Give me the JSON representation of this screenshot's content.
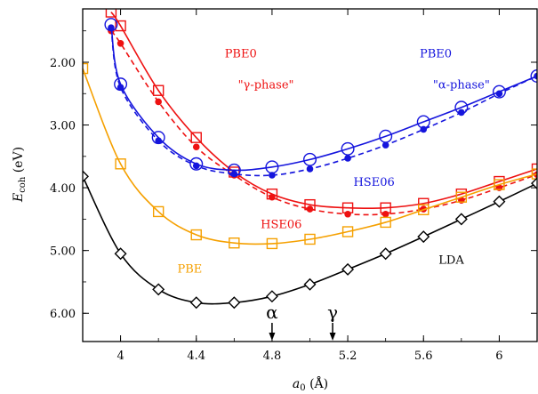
{
  "chart_data": {
    "type": "line",
    "xlabel_main": "a",
    "xlabel_sub": "0",
    "xlabel_unit": " (Å)",
    "ylabel_main": "E",
    "ylabel_sub": "coh",
    "ylabel_unit": " (eV)",
    "xlim": [
      3.8,
      6.2
    ],
    "ylim": [
      6.45,
      1.15
    ],
    "xticks": [
      4.0,
      4.4,
      4.8,
      5.2,
      5.6,
      6.0
    ],
    "xtick_labels": [
      "4",
      "4.4",
      "4.8",
      "5.2",
      "5.6",
      "6"
    ],
    "yticks": [
      2.0,
      3.0,
      4.0,
      5.0,
      6.0
    ],
    "ytick_labels": [
      "2.00",
      "3.00",
      "4.00",
      "5.00",
      "6.00"
    ],
    "grid": false,
    "series": [
      {
        "key": "pbe0_gamma",
        "color": "#ee1111",
        "marker": "open-square",
        "line": "solid",
        "x": [
          3.95,
          4.0,
          4.2,
          4.4,
          4.6,
          4.8,
          5.0,
          5.2,
          5.4,
          5.6,
          5.8,
          6.0,
          6.2
        ],
        "y": [
          1.2,
          1.42,
          2.45,
          3.2,
          3.75,
          4.1,
          4.27,
          4.32,
          4.32,
          4.25,
          4.1,
          3.9,
          3.7
        ]
      },
      {
        "key": "hse06_gamma",
        "color": "#ee1111",
        "marker": "filled-circle",
        "line": "dashed",
        "x": [
          3.95,
          4.0,
          4.2,
          4.4,
          4.6,
          4.8,
          5.0,
          5.2,
          5.4,
          5.6,
          5.8,
          6.0,
          6.2
        ],
        "y": [
          1.5,
          1.7,
          2.63,
          3.35,
          3.8,
          4.15,
          4.34,
          4.42,
          4.42,
          4.34,
          4.2,
          4.0,
          3.79
        ]
      },
      {
        "key": "pbe0_alpha",
        "color": "#1515dd",
        "marker": "open-circle",
        "line": "solid",
        "x": [
          3.95,
          4.0,
          4.2,
          4.4,
          4.6,
          4.8,
          5.0,
          5.2,
          5.4,
          5.6,
          5.8,
          6.0,
          6.2
        ],
        "y": [
          1.4,
          2.35,
          3.2,
          3.62,
          3.72,
          3.67,
          3.55,
          3.38,
          3.18,
          2.95,
          2.72,
          2.47,
          2.22
        ]
      },
      {
        "key": "hse06_alpha",
        "color": "#1515dd",
        "marker": "filled-circle",
        "line": "dashed",
        "x": [
          3.95,
          4.0,
          4.2,
          4.4,
          4.6,
          4.8,
          5.0,
          5.2,
          5.4,
          5.6,
          5.8,
          6.0,
          6.2
        ],
        "y": [
          1.45,
          2.4,
          3.25,
          3.65,
          3.78,
          3.8,
          3.7,
          3.53,
          3.32,
          3.07,
          2.8,
          2.5,
          2.22
        ]
      },
      {
        "key": "pbe",
        "color": "#f5a000",
        "marker": "open-square",
        "line": "solid",
        "x": [
          3.8,
          4.0,
          4.2,
          4.4,
          4.6,
          4.8,
          5.0,
          5.2,
          5.4,
          5.6,
          5.8,
          6.0,
          6.2
        ],
        "y": [
          2.1,
          3.62,
          4.38,
          4.75,
          4.88,
          4.89,
          4.82,
          4.7,
          4.55,
          4.35,
          4.15,
          3.95,
          3.78
        ]
      },
      {
        "key": "lda",
        "color": "#000000",
        "marker": "open-diamond",
        "line": "solid",
        "x": [
          3.8,
          4.0,
          4.2,
          4.4,
          4.6,
          4.8,
          5.0,
          5.2,
          5.4,
          5.6,
          5.8,
          6.0,
          6.2
        ],
        "y": [
          3.82,
          5.05,
          5.62,
          5.83,
          5.83,
          5.73,
          5.54,
          5.3,
          5.05,
          4.78,
          4.5,
          4.22,
          3.93
        ]
      }
    ],
    "annotations": [
      {
        "key": "pbe0_gamma",
        "text": "PBE0",
        "color": "#ee1111",
        "x": 4.55,
        "y": 1.92
      },
      {
        "key": "gamma_phase",
        "text": "\"γ-phase\"",
        "color": "#ee1111",
        "x": 4.62,
        "y": 2.42
      },
      {
        "key": "pbe0_alpha",
        "text": "PBE0",
        "color": "#1515dd",
        "x": 5.58,
        "y": 1.92
      },
      {
        "key": "alpha_phase",
        "text": "\"α-phase\"",
        "color": "#1515dd",
        "x": 5.65,
        "y": 2.42
      },
      {
        "key": "hse06_alpha",
        "text": "HSE06",
        "color": "#1515dd",
        "x": 5.23,
        "y": 3.97
      },
      {
        "key": "hse06_gamma",
        "text": "HSE06",
        "color": "#ee1111",
        "x": 4.74,
        "y": 4.64
      },
      {
        "key": "pbe",
        "text": "PBE",
        "color": "#f5a000",
        "x": 4.3,
        "y": 5.35
      },
      {
        "key": "lda",
        "text": "LDA",
        "color": "#000000",
        "x": 5.68,
        "y": 5.21
      }
    ],
    "markers": [
      {
        "key": "alpha",
        "label": "α",
        "x": 4.8
      },
      {
        "key": "gamma",
        "label": "γ",
        "x": 5.12
      }
    ]
  }
}
